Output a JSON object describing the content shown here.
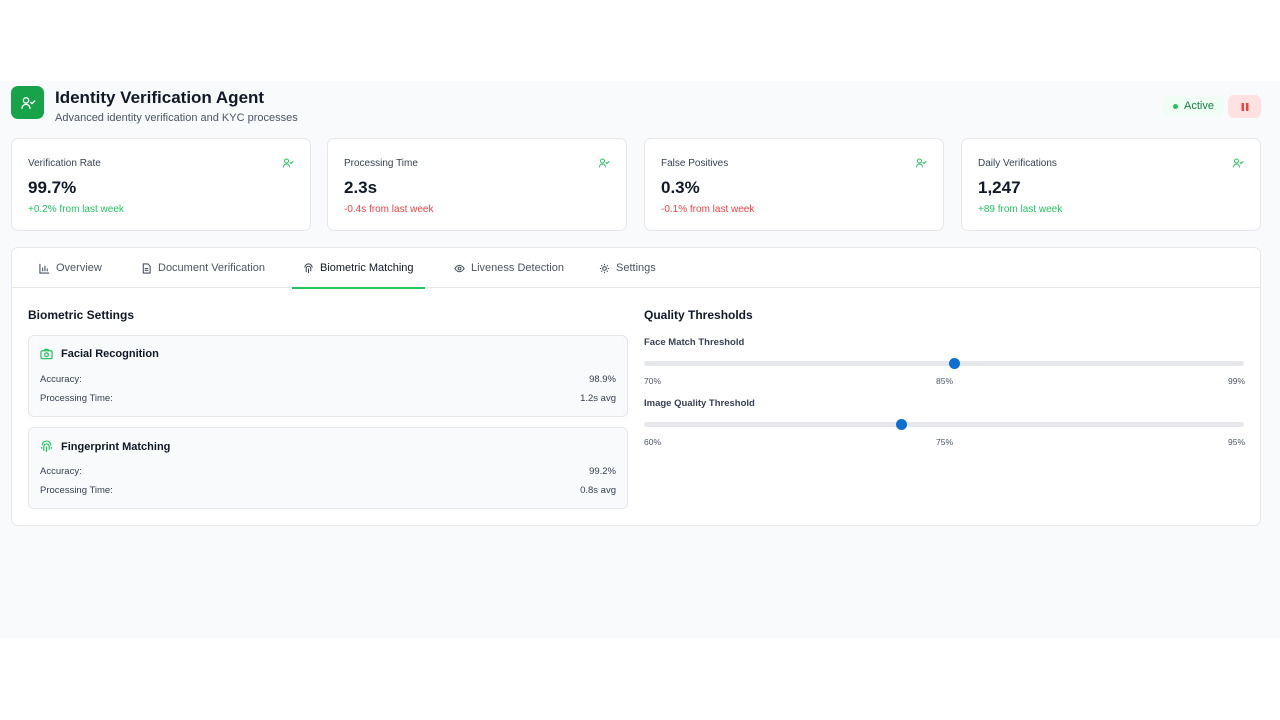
{
  "header": {
    "title": "Identity Verification Agent",
    "subtitle": "Advanced identity verification and KYC processes",
    "status": "Active",
    "logo_icon": "user-check-icon",
    "pause_icon": "pause-icon"
  },
  "colors": {
    "accent": "#16a34a",
    "positive": "#22c55e",
    "negative": "#ef4444",
    "slider": "#0b6fd4"
  },
  "metrics": [
    {
      "label": "Verification Rate",
      "value": "99.7%",
      "change": "+0.2% from last week",
      "trend": "positive",
      "icon": "user-check-icon"
    },
    {
      "label": "Processing Time",
      "value": "2.3s",
      "change": "-0.4s from last week",
      "trend": "negative",
      "icon": "user-check-icon"
    },
    {
      "label": "False Positives",
      "value": "0.3%",
      "change": "-0.1% from last week",
      "trend": "negative",
      "icon": "user-check-icon"
    },
    {
      "label": "Daily Verifications",
      "value": "1,247",
      "change": "+89 from last week",
      "trend": "positive",
      "icon": "user-check-icon"
    }
  ],
  "tabs": [
    {
      "label": "Overview",
      "icon": "bar-chart-icon"
    },
    {
      "label": "Document Verification",
      "icon": "document-icon"
    },
    {
      "label": "Biometric Matching",
      "icon": "fingerprint-icon",
      "active": true
    },
    {
      "label": "Liveness Detection",
      "icon": "eye-icon"
    },
    {
      "label": "Settings",
      "icon": "gear-icon"
    }
  ],
  "biometric": {
    "title": "Biometric Settings",
    "items": [
      {
        "name": "Facial Recognition",
        "icon": "camera-icon",
        "accuracy_label": "Accuracy:",
        "accuracy": "98.9%",
        "time_label": "Processing Time:",
        "time": "1.2s avg"
      },
      {
        "name": "Fingerprint Matching",
        "icon": "fingerprint-icon",
        "accuracy_label": "Accuracy:",
        "accuracy": "99.2%",
        "time_label": "Processing Time:",
        "time": "0.8s avg"
      }
    ]
  },
  "quality": {
    "title": "Quality Thresholds",
    "sliders": [
      {
        "label": "Face Match Threshold",
        "min_label": "70%",
        "mid_label": "85%",
        "max_label": "99%",
        "min": 70,
        "max": 99,
        "value": 85
      },
      {
        "label": "Image Quality Threshold",
        "min_label": "60%",
        "mid_label": "75%",
        "max_label": "95%",
        "min": 60,
        "max": 95,
        "value": 75
      }
    ]
  }
}
